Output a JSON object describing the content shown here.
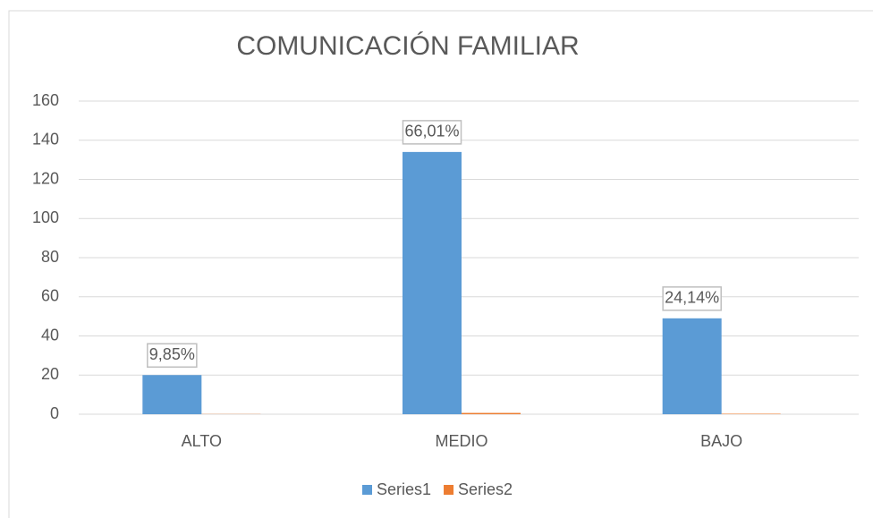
{
  "chart_data": {
    "type": "bar",
    "title": "COMUNICACIÓN FAMILIAR",
    "categories": [
      "ALTO",
      "MEDIO",
      "BAJO"
    ],
    "series": [
      {
        "name": "Series1",
        "color": "#5b9bd5",
        "values": [
          20,
          134,
          49
        ]
      },
      {
        "name": "Series2",
        "color": "#ed7d31",
        "values": [
          0.0985,
          0.6601,
          0.2414
        ],
        "value_labels": [
          "9,85%",
          "66,01%",
          "24,14%"
        ]
      }
    ],
    "ylim": [
      0,
      160
    ],
    "yticks": [
      0,
      20,
      40,
      60,
      80,
      100,
      120,
      140,
      160
    ],
    "grid": true,
    "legend": "bottom"
  }
}
